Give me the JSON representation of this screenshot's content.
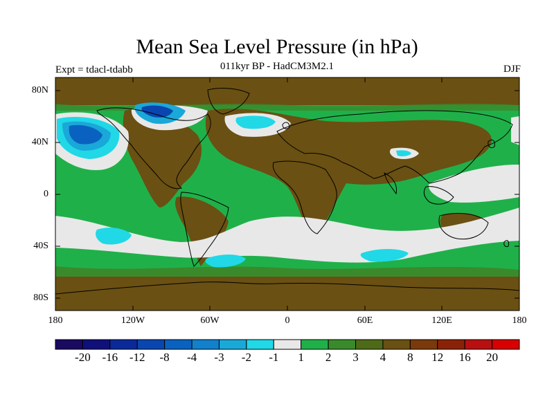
{
  "title": "Mean Sea Level Pressure (in hPa)",
  "subtitle": "011kyr BP - HadCM3M2.1",
  "expt_label": "Expt = tdacl-tdabb",
  "season": "DJF",
  "lat_labels": [
    "80N",
    "40N",
    "0",
    "40S",
    "80S"
  ],
  "lon_labels": [
    "180",
    "120W",
    "60W",
    "0",
    "60E",
    "120E",
    "180"
  ],
  "colorbar": {
    "labels": [
      "-20",
      "-16",
      "-12",
      "-8",
      "-4",
      "-3",
      "-2",
      "-1",
      "1",
      "2",
      "3",
      "4",
      "8",
      "12",
      "16",
      "20"
    ],
    "colors": [
      "#1a0a60",
      "#10107a",
      "#0a2a9a",
      "#0a46b0",
      "#0a62c0",
      "#1280cc",
      "#1aa8d8",
      "#20d8e6",
      "#e8e8e8",
      "#20b04a",
      "#3a8a2c",
      "#4e6a18",
      "#6a5012",
      "#7a3a0c",
      "#8a2208",
      "#b81010",
      "#d80000"
    ]
  },
  "colors": {
    "land_brown": "#6a5012",
    "dark_green": "#3a8a2c",
    "bright_green": "#20b04a",
    "grey": "#e8e8e8",
    "cyan": "#20d8e6",
    "blue_mid": "#1aa8d8",
    "blue_dark": "#0a62c0"
  }
}
